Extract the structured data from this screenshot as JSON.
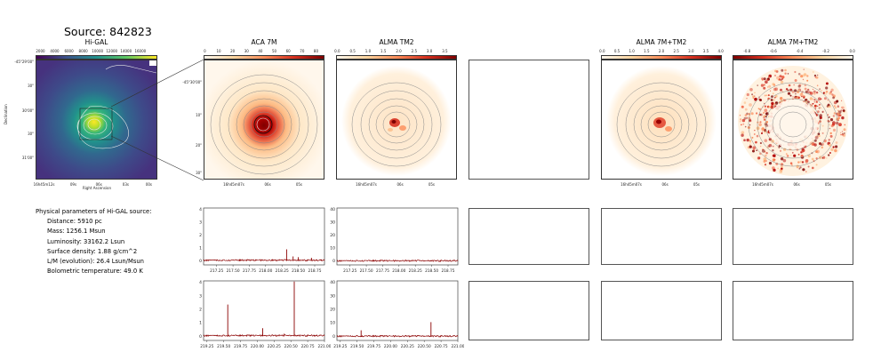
{
  "source_title": "Source: 842823",
  "panels": {
    "higal": {
      "title": "Hi-GAL",
      "colorbar_ticks": [
        "2000",
        "4000",
        "6000",
        "8000",
        "10000",
        "12000",
        "14000",
        "16000"
      ],
      "y_ticks": [
        "-45°29'00\"",
        "30\"",
        "30'00\"",
        "30\"",
        "31'00\""
      ],
      "x_ticks": [
        "16h45m12s",
        "09s",
        "06s",
        "03s",
        "00s"
      ],
      "xlabel": "Right Ascension",
      "ylabel": "Declination"
    },
    "aca": {
      "title": "ACA 7M",
      "colorbar_ticks": [
        "0",
        "10",
        "20",
        "30",
        "40",
        "50",
        "60",
        "70",
        "80"
      ],
      "y_ticks": [
        "-45°30'00\"",
        "10\"",
        "20\"",
        "30\""
      ],
      "x_ticks": [
        "16h45m07s",
        "06s",
        "05s"
      ]
    },
    "tm2": {
      "title": "ALMA TM2",
      "colorbar_ticks": [
        "0.0",
        "0.5",
        "1.0",
        "1.5",
        "2.0",
        "2.5",
        "3.0",
        "3.5"
      ],
      "x_ticks": [
        "16h45m07s",
        "06s",
        "05s"
      ]
    },
    "combo": {
      "title": "ALMA 7M+TM2",
      "colorbar_ticks": [
        "0.0",
        "0.5",
        "1.0",
        "1.5",
        "2.0",
        "2.5",
        "3.0",
        "3.5",
        "4.0"
      ],
      "x_ticks": [
        "16h45m07s",
        "06s",
        "05s"
      ]
    },
    "combo_neg": {
      "title": "ALMA 7M+TM2",
      "colorbar_ticks": [
        "-0.8",
        "-0.6",
        "-0.4",
        "-0.2",
        "0.0"
      ],
      "x_ticks": [
        "16h45m07s",
        "06s",
        "05s"
      ]
    }
  },
  "params": {
    "header": "Physical parameters of Hi-GAL source:",
    "distance": "Distance: 5910 pc",
    "mass": "Mass: 1256.1 Msun",
    "luminosity": "Luminosity: 33162.2 Lsun",
    "surface_density": "Surface density: 1.88 g/cm^2",
    "lm": "L/M (evolution): 26.4 Lsun/Msun",
    "tbol": "Bolometric temperature: 49.0 K"
  },
  "colors": {
    "spectrum": "#8b0000",
    "contour": "#888888",
    "viridis_low": "#440154",
    "viridis_high": "#fde725",
    "orrd_high": "#7f0000"
  },
  "chart_data": [
    {
      "type": "line",
      "panel": "aca_spectrum_row1",
      "x": [
        217.25,
        217.6,
        217.85,
        218.1,
        218.32,
        218.42,
        218.5,
        218.7,
        218.85
      ],
      "y": [
        0.1,
        0.12,
        0.08,
        0.1,
        0.9,
        0.35,
        0.3,
        0.25,
        0.1
      ],
      "xlim": [
        217.05,
        218.9
      ],
      "ylim": [
        -0.3,
        4.1
      ],
      "x_ticks": [
        "217.25",
        "217.50",
        "217.75",
        "218.00",
        "218.25",
        "218.50",
        "218.75"
      ],
      "y_ticks": [
        "0",
        "1",
        "2",
        "3",
        "4"
      ]
    },
    {
      "type": "line",
      "panel": "tm2_spectrum_row1",
      "x": [
        217.25,
        217.6,
        217.85,
        218.1,
        218.32,
        218.5,
        218.85
      ],
      "y": [
        0.3,
        0.5,
        0.4,
        0.3,
        0.6,
        0.4,
        0.3
      ],
      "xlim": [
        217.05,
        218.9
      ],
      "ylim": [
        -3,
        41
      ],
      "x_ticks": [
        "217.25",
        "217.50",
        "217.75",
        "218.00",
        "218.25",
        "218.50",
        "218.75"
      ],
      "y_ticks": [
        "0",
        "10",
        "20",
        "30",
        "40"
      ]
    },
    {
      "type": "line",
      "panel": "aca_spectrum_row2",
      "x": [
        219.4,
        219.56,
        219.9,
        220.08,
        220.4,
        220.55,
        220.85
      ],
      "y": [
        0.1,
        2.35,
        0.1,
        0.6,
        0.2,
        4.05,
        0.1
      ],
      "xlim": [
        219.2,
        221.0
      ],
      "ylim": [
        -0.3,
        4.1
      ],
      "x_ticks": [
        "219.25",
        "219.50",
        "219.75",
        "220.00",
        "220.25",
        "220.50",
        "220.75",
        "221.00"
      ],
      "y_ticks": [
        "0",
        "1",
        "2",
        "3",
        "4"
      ]
    },
    {
      "type": "line",
      "panel": "tm2_spectrum_row2",
      "x": [
        219.4,
        219.56,
        219.9,
        220.4,
        220.6,
        220.85
      ],
      "y": [
        0.3,
        4.5,
        0.3,
        0.3,
        10.5,
        0.3
      ],
      "xlim": [
        219.2,
        221.0
      ],
      "ylim": [
        -3,
        41
      ],
      "x_ticks": [
        "219.25",
        "219.50",
        "219.75",
        "220.00",
        "220.25",
        "220.50",
        "220.75",
        "221.00"
      ],
      "y_ticks": [
        "0",
        "10",
        "20",
        "30",
        "40"
      ]
    }
  ]
}
